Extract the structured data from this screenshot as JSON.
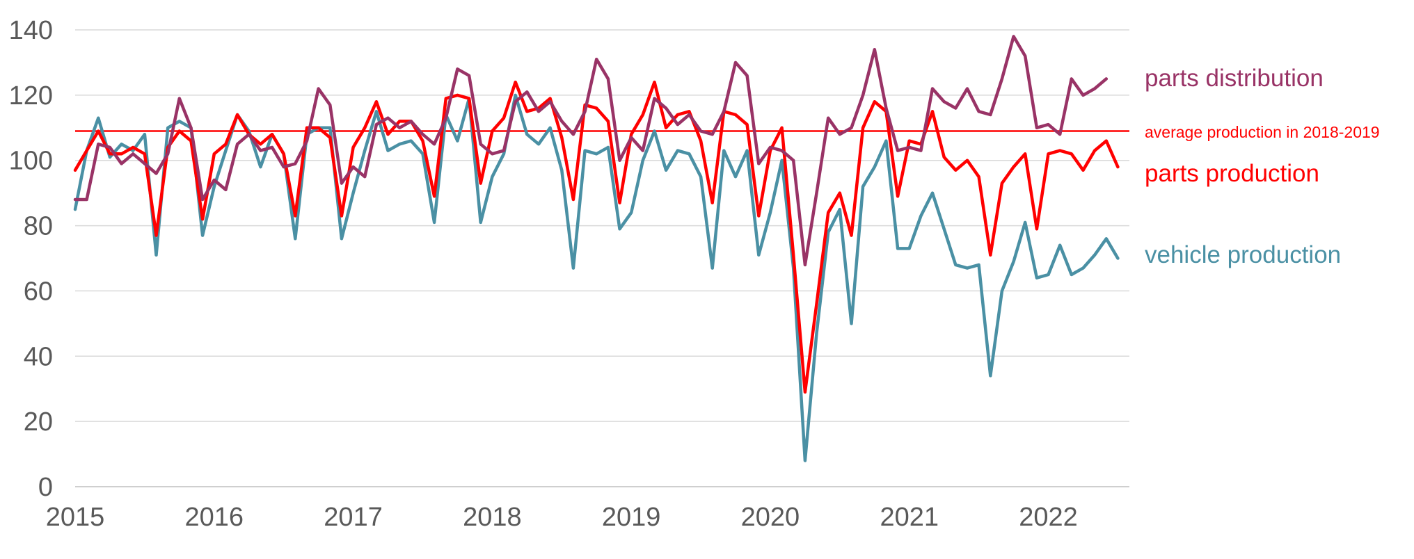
{
  "chart_data": {
    "type": "line",
    "title": "",
    "xlabel": "",
    "ylabel": "",
    "ylim": [
      0,
      140
    ],
    "y_ticks": [
      "0",
      "20",
      "40",
      "60",
      "80",
      "100",
      "120",
      "140"
    ],
    "x_range": [
      2015,
      2022.583
    ],
    "x_ticks": [
      "2015",
      "2016",
      "2017",
      "2018",
      "2019",
      "2020",
      "2021",
      "2022"
    ],
    "grid": "horizontal",
    "reference_line": {
      "label": "average production in 2018-2019",
      "value": 109,
      "color": "#ff0000"
    },
    "series": [
      {
        "name": "vehicle production",
        "color": "#4a90a4",
        "values": [
          85,
          103,
          113,
          101,
          105,
          103,
          108,
          71,
          110,
          112,
          110,
          77,
          92,
          103,
          114,
          109,
          98,
          108,
          102,
          76,
          108,
          110,
          110,
          76,
          90,
          103,
          115,
          103,
          105,
          106,
          102,
          81,
          114,
          106,
          119,
          81,
          95,
          102,
          120,
          108,
          105,
          110,
          97,
          67,
          103,
          102,
          104,
          79,
          84,
          100,
          109,
          97,
          103,
          102,
          95,
          67,
          103,
          95,
          103,
          71,
          84,
          100,
          67,
          8,
          47,
          78,
          85,
          50,
          92,
          98,
          106,
          73,
          73,
          83,
          90,
          79,
          68,
          67,
          68,
          34,
          60,
          69,
          81,
          64,
          65,
          74,
          65,
          67,
          71,
          76,
          70
        ]
      },
      {
        "name": "parts production",
        "color": "#ff0000",
        "values": [
          97,
          103,
          109,
          102,
          102,
          104,
          102,
          77,
          104,
          109,
          106,
          82,
          102,
          105,
          114,
          108,
          105,
          108,
          102,
          83,
          110,
          110,
          107,
          83,
          104,
          110,
          118,
          108,
          112,
          112,
          106,
          89,
          119,
          120,
          119,
          93,
          109,
          113,
          124,
          115,
          116,
          119,
          107,
          88,
          117,
          116,
          112,
          87,
          108,
          114,
          124,
          110,
          114,
          115,
          106,
          87,
          115,
          114,
          111,
          83,
          103,
          110,
          71,
          29,
          56,
          84,
          90,
          77,
          110,
          118,
          115,
          89,
          106,
          105,
          115,
          101,
          97,
          100,
          95,
          71,
          93,
          98,
          102,
          79,
          102,
          103,
          102,
          97,
          103,
          106,
          98
        ]
      },
      {
        "name": "parts distribution",
        "color": "#993366",
        "values": [
          88,
          88,
          105,
          104,
          99,
          102,
          99,
          96,
          102,
          119,
          110,
          88,
          94,
          91,
          105,
          108,
          103,
          104,
          98,
          99,
          106,
          122,
          117,
          93,
          98,
          95,
          111,
          113,
          110,
          112,
          108,
          105,
          113,
          128,
          126,
          105,
          102,
          103,
          118,
          121,
          115,
          118,
          112,
          108,
          115,
          131,
          125,
          100,
          107,
          103,
          119,
          116,
          111,
          114,
          109,
          108,
          115,
          130,
          126,
          99,
          104,
          103,
          100,
          68,
          90,
          113,
          108,
          110,
          120,
          134,
          116,
          103,
          104,
          103,
          122,
          118,
          116,
          122,
          115,
          114,
          125,
          138,
          132,
          110,
          111,
          108,
          125,
          120,
          122,
          125
        ]
      }
    ]
  }
}
